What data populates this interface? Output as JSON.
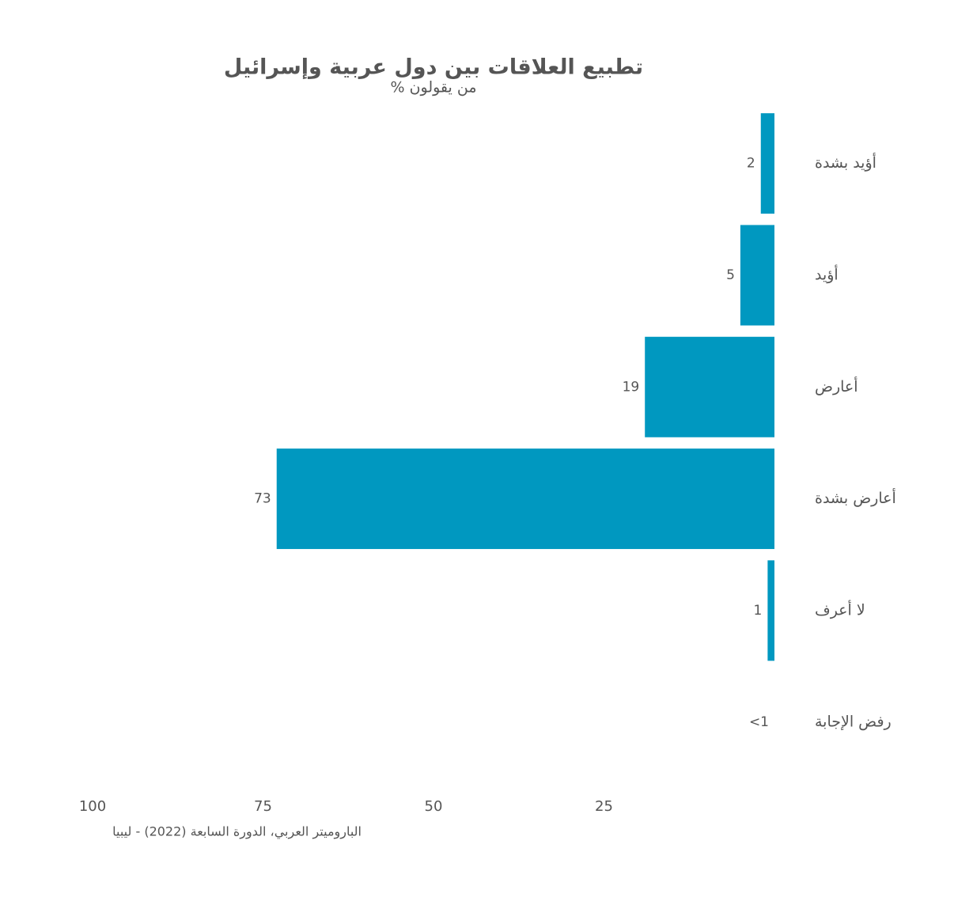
{
  "chart_data": {
    "type": "bar",
    "orientation": "horizontal",
    "x_reversed": true,
    "title": "تطبيع العلاقات بين دول عربية وإسرائيل",
    "subtitle": "% من يقولون",
    "source": "الباروميتر العربي، الدورة السابعة (2022) - ليبيا",
    "categories": [
      "أؤيد بشدة",
      "أؤيد",
      "أعارض",
      "أعارض بشدة",
      "لا أعرف",
      "رفض الإجابة"
    ],
    "values": [
      2,
      5,
      19,
      73,
      1,
      0
    ],
    "value_labels": [
      "2",
      "5",
      "19",
      "73",
      "1",
      "<1"
    ],
    "color": "#0098c0",
    "xlim": [
      0,
      100
    ],
    "xticks": [
      25,
      50,
      75,
      100
    ],
    "grid": false
  }
}
